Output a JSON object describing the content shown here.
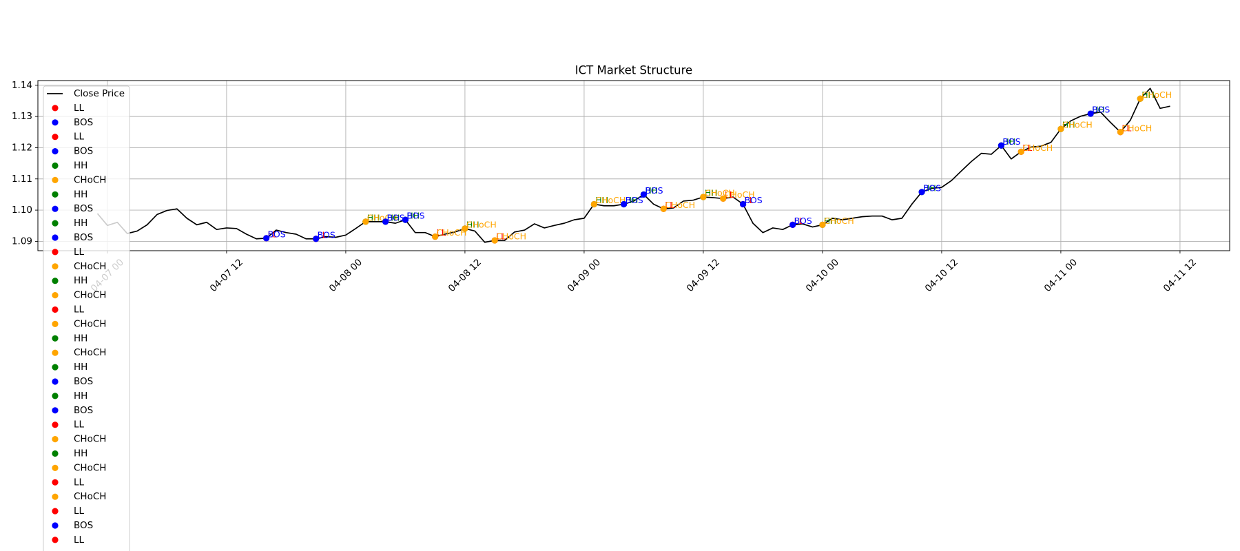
{
  "chart_data": {
    "type": "line",
    "title": "ICT Market Structure",
    "grid": true,
    "legend": "upper left",
    "xlim": [
      "04-06 17",
      "04-11 17"
    ],
    "xticks": [
      "04-07 00",
      "04-07 12",
      "04-08 00",
      "04-08 12",
      "04-09 00",
      "04-09 12",
      "04-10 00",
      "04-10 12",
      "04-11 00",
      "04-11 12"
    ],
    "ylim": [
      1.087,
      1.1415
    ],
    "yticks": [
      1.09,
      {
        "value": 1.1,
        "label": "1.10"
      },
      1.11,
      1.12,
      1.13,
      1.14
    ],
    "series": [
      {
        "name": "Close Price",
        "type": "line",
        "color": "black",
        "x": [
          "04-06 23",
          "04-07 00",
          "04-07 01",
          "04-07 02",
          "04-07 03",
          "04-07 04",
          "04-07 05",
          "04-07 06",
          "04-07 07",
          "04-07 08",
          "04-07 09",
          "04-07 10",
          "04-07 11",
          "04-07 12",
          "04-07 13",
          "04-07 14",
          "04-07 15",
          "04-07 16",
          "04-07 17",
          "04-07 18",
          "04-07 19",
          "04-07 20",
          "04-07 21",
          "04-07 22",
          "04-07 23",
          "04-08 00",
          "04-08 01",
          "04-08 02",
          "04-08 03",
          "04-08 04",
          "04-08 05",
          "04-08 06",
          "04-08 07",
          "04-08 08",
          "04-08 09",
          "04-08 10",
          "04-08 11",
          "04-08 12",
          "04-08 13",
          "04-08 14",
          "04-08 15",
          "04-08 16",
          "04-08 17",
          "04-08 18",
          "04-08 19",
          "04-08 20",
          "04-08 21",
          "04-08 22",
          "04-08 23",
          "04-09 00",
          "04-09 01",
          "04-09 02",
          "04-09 03",
          "04-09 04",
          "04-09 05",
          "04-09 06",
          "04-09 07",
          "04-09 08",
          "04-09 09",
          "04-09 10",
          "04-09 11",
          "04-09 12",
          "04-09 13",
          "04-09 14",
          "04-09 15",
          "04-09 16",
          "04-09 17",
          "04-09 18",
          "04-09 19",
          "04-09 20",
          "04-09 21",
          "04-09 22",
          "04-09 23",
          "04-10 00",
          "04-10 01",
          "04-10 02",
          "04-10 03",
          "04-10 04",
          "04-10 05",
          "04-10 06",
          "04-10 07",
          "04-10 08",
          "04-10 09",
          "04-10 10",
          "04-10 11",
          "04-10 12",
          "04-10 13",
          "04-10 14",
          "04-10 15",
          "04-10 16",
          "04-10 17",
          "04-10 18",
          "04-10 19",
          "04-10 20",
          "04-10 21",
          "04-10 22",
          "04-10 23",
          "04-11 00",
          "04-11 01",
          "04-11 02",
          "04-11 03",
          "04-11 04",
          "04-11 05",
          "04-11 06",
          "04-11 07",
          "04-11 08",
          "04-11 09",
          "04-11 10",
          "04-11 11"
        ],
        "values": [
          1.0989,
          1.0951,
          1.0961,
          1.0925,
          1.0933,
          1.0953,
          1.0986,
          1.0999,
          1.1004,
          1.0974,
          1.0953,
          1.0961,
          1.0938,
          1.0943,
          1.0941,
          1.0923,
          1.0908,
          1.091,
          1.0936,
          1.0928,
          1.0923,
          1.0908,
          1.0908,
          1.0915,
          1.0913,
          1.092,
          1.0941,
          1.0963,
          1.0963,
          1.0963,
          1.0958,
          1.0969,
          1.0928,
          1.0928,
          1.0915,
          1.0923,
          1.093,
          1.0941,
          1.0933,
          1.0897,
          1.0903,
          1.0903,
          1.093,
          1.0936,
          1.0956,
          1.0943,
          1.0951,
          1.0958,
          1.0969,
          1.0974,
          1.1019,
          1.1014,
          1.1014,
          1.1019,
          1.1029,
          1.105,
          1.1019,
          1.1004,
          1.1007,
          1.1029,
          1.1032,
          1.1042,
          1.104,
          1.1037,
          1.1042,
          1.1019,
          1.0958,
          1.0928,
          1.0943,
          1.0938,
          1.0953,
          1.0956,
          1.0946,
          1.0953,
          1.0974,
          1.0969,
          1.0974,
          1.0979,
          1.0981,
          1.0981,
          1.0969,
          1.0974,
          1.1019,
          1.1058,
          1.107,
          1.1073,
          1.1095,
          1.1126,
          1.1156,
          1.1182,
          1.1179,
          1.1207,
          1.1164,
          1.1187,
          1.1202,
          1.1205,
          1.1217,
          1.126,
          1.1286,
          1.1301,
          1.1309,
          1.1314,
          1.1281,
          1.125,
          1.1288,
          1.1357,
          1.139,
          1.1326,
          1.1333
        ]
      },
      {
        "name": "LL",
        "type": "scatter",
        "color": "red",
        "x": [
          "04-07 16"
        ],
        "values": [
          1.091
        ]
      },
      {
        "name": "BOS",
        "type": "scatter",
        "color": "blue",
        "x": [
          "04-07 16"
        ],
        "values": [
          1.091
        ]
      },
      {
        "name": "LL",
        "type": "scatter",
        "color": "red",
        "x": [
          "04-07 21"
        ],
        "values": [
          1.0908
        ]
      },
      {
        "name": "BOS",
        "type": "scatter",
        "color": "blue",
        "x": [
          "04-07 21"
        ],
        "values": [
          1.0908
        ]
      },
      {
        "name": "HH",
        "type": "scatter",
        "color": "green",
        "x": [
          "04-08 02"
        ],
        "values": [
          1.0963
        ]
      },
      {
        "name": "CHoCH",
        "type": "scatter",
        "color": "orange",
        "x": [
          "04-08 02"
        ],
        "values": [
          1.0963
        ]
      },
      {
        "name": "HH",
        "type": "scatter",
        "color": "green",
        "x": [
          "04-08 04"
        ],
        "values": [
          1.0963
        ]
      },
      {
        "name": "BOS",
        "type": "scatter",
        "color": "blue",
        "x": [
          "04-08 04"
        ],
        "values": [
          1.0963
        ]
      },
      {
        "name": "HH",
        "type": "scatter",
        "color": "green",
        "x": [
          "04-08 06"
        ],
        "values": [
          1.0969
        ]
      },
      {
        "name": "BOS",
        "type": "scatter",
        "color": "blue",
        "x": [
          "04-08 06"
        ],
        "values": [
          1.0969
        ]
      },
      {
        "name": "LL",
        "type": "scatter",
        "color": "red",
        "x": [
          "04-08 09"
        ],
        "values": [
          1.0915
        ]
      },
      {
        "name": "CHoCH",
        "type": "scatter",
        "color": "orange",
        "x": [
          "04-08 09"
        ],
        "values": [
          1.0915
        ]
      },
      {
        "name": "HH",
        "type": "scatter",
        "color": "green",
        "x": [
          "04-08 12"
        ],
        "values": [
          1.0941
        ]
      },
      {
        "name": "CHoCH",
        "type": "scatter",
        "color": "orange",
        "x": [
          "04-08 12"
        ],
        "values": [
          1.0941
        ]
      },
      {
        "name": "LL",
        "type": "scatter",
        "color": "red",
        "x": [
          "04-08 15"
        ],
        "values": [
          1.0903
        ]
      },
      {
        "name": "CHoCH",
        "type": "scatter",
        "color": "orange",
        "x": [
          "04-08 15"
        ],
        "values": [
          1.0903
        ]
      },
      {
        "name": "HH",
        "type": "scatter",
        "color": "green",
        "x": [
          "04-09 01"
        ],
        "values": [
          1.1019
        ]
      },
      {
        "name": "CHoCH",
        "type": "scatter",
        "color": "orange",
        "x": [
          "04-09 01"
        ],
        "values": [
          1.1019
        ]
      },
      {
        "name": "HH",
        "type": "scatter",
        "color": "green",
        "x": [
          "04-09 04"
        ],
        "values": [
          1.1019
        ]
      },
      {
        "name": "BOS",
        "type": "scatter",
        "color": "blue",
        "x": [
          "04-09 04"
        ],
        "values": [
          1.1019
        ]
      },
      {
        "name": "HH",
        "type": "scatter",
        "color": "green",
        "x": [
          "04-09 06"
        ],
        "values": [
          1.105
        ]
      },
      {
        "name": "BOS",
        "type": "scatter",
        "color": "blue",
        "x": [
          "04-09 06"
        ],
        "values": [
          1.105
        ]
      },
      {
        "name": "LL",
        "type": "scatter",
        "color": "red",
        "x": [
          "04-09 08"
        ],
        "values": [
          1.1004
        ]
      },
      {
        "name": "CHoCH",
        "type": "scatter",
        "color": "orange",
        "x": [
          "04-09 08"
        ],
        "values": [
          1.1004
        ]
      },
      {
        "name": "HH",
        "type": "scatter",
        "color": "green",
        "x": [
          "04-09 12"
        ],
        "values": [
          1.1042
        ]
      },
      {
        "name": "CHoCH",
        "type": "scatter",
        "color": "orange",
        "x": [
          "04-09 12"
        ],
        "values": [
          1.1042
        ]
      },
      {
        "name": "LL",
        "type": "scatter",
        "color": "red",
        "x": [
          "04-09 14"
        ],
        "values": [
          1.1037
        ]
      },
      {
        "name": "CHoCH",
        "type": "scatter",
        "color": "orange",
        "x": [
          "04-09 14"
        ],
        "values": [
          1.1037
        ]
      },
      {
        "name": "LL",
        "type": "scatter",
        "color": "red",
        "x": [
          "04-09 16"
        ],
        "values": [
          1.1019
        ]
      },
      {
        "name": "BOS",
        "type": "scatter",
        "color": "blue",
        "x": [
          "04-09 16"
        ],
        "values": [
          1.1019
        ]
      },
      {
        "name": "LL",
        "type": "scatter",
        "color": "red",
        "x": [
          "04-09 21"
        ],
        "values": [
          1.0953
        ]
      },
      {
        "name": "BOS",
        "type": "scatter",
        "color": "blue",
        "x": [
          "04-09 21"
        ],
        "values": [
          1.0953
        ]
      },
      {
        "name": "HH",
        "type": "scatter",
        "color": "green",
        "x": [
          "04-10 00"
        ],
        "values": [
          1.0953
        ]
      },
      {
        "name": "CHoCH",
        "type": "scatter",
        "color": "orange",
        "x": [
          "04-10 00"
        ],
        "values": [
          1.0953
        ]
      },
      {
        "name": "HH",
        "type": "scatter",
        "color": "green",
        "x": [
          "04-10 10"
        ],
        "values": [
          1.1058
        ]
      },
      {
        "name": "BOS",
        "type": "scatter",
        "color": "blue",
        "x": [
          "04-10 10"
        ],
        "values": [
          1.1058
        ]
      },
      {
        "name": "HH",
        "type": "scatter",
        "color": "green",
        "x": [
          "04-10 18"
        ],
        "values": [
          1.1207
        ]
      },
      {
        "name": "BOS",
        "type": "scatter",
        "color": "blue",
        "x": [
          "04-10 18"
        ],
        "values": [
          1.1207
        ]
      },
      {
        "name": "LL",
        "type": "scatter",
        "color": "red",
        "x": [
          "04-10 20"
        ],
        "values": [
          1.1187
        ]
      },
      {
        "name": "CHoCH",
        "type": "scatter",
        "color": "orange",
        "x": [
          "04-10 20"
        ],
        "values": [
          1.1187
        ]
      },
      {
        "name": "HH",
        "type": "scatter",
        "color": "green",
        "x": [
          "04-11 00"
        ],
        "values": [
          1.126
        ]
      },
      {
        "name": "CHoCH",
        "type": "scatter",
        "color": "orange",
        "x": [
          "04-11 00"
        ],
        "values": [
          1.126
        ]
      },
      {
        "name": "HH",
        "type": "scatter",
        "color": "green",
        "x": [
          "04-11 03"
        ],
        "values": [
          1.1309
        ]
      },
      {
        "name": "BOS",
        "type": "scatter",
        "color": "blue",
        "x": [
          "04-11 03"
        ],
        "values": [
          1.1309
        ]
      },
      {
        "name": "LL",
        "type": "scatter",
        "color": "red",
        "x": [
          "04-11 06"
        ],
        "values": [
          1.125
        ]
      },
      {
        "name": "CHoCH",
        "type": "scatter",
        "color": "orange",
        "x": [
          "04-11 06"
        ],
        "values": [
          1.125
        ]
      },
      {
        "name": "HH",
        "type": "scatter",
        "color": "green",
        "x": [
          "04-11 08"
        ],
        "values": [
          1.1357
        ]
      },
      {
        "name": "CHoCH",
        "type": "scatter",
        "color": "orange",
        "x": [
          "04-11 08"
        ],
        "values": [
          1.1357
        ]
      }
    ]
  }
}
